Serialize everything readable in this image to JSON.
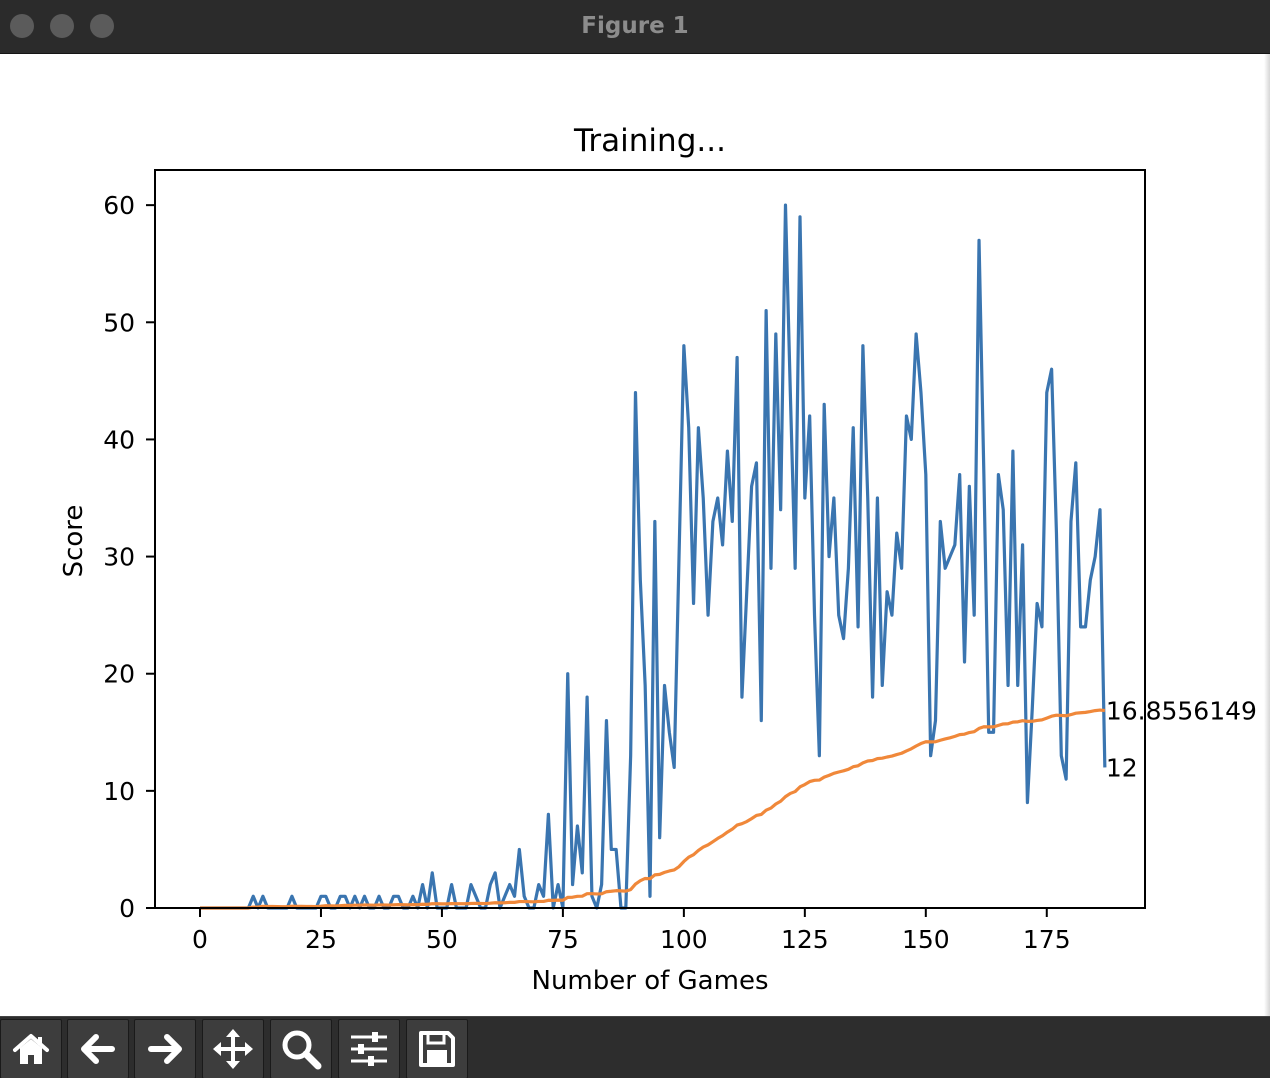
{
  "window": {
    "title": "Figure 1"
  },
  "toolbar": {
    "buttons": [
      {
        "name": "home-button",
        "icon": "home-icon"
      },
      {
        "name": "back-button",
        "icon": "arrow-left-icon"
      },
      {
        "name": "forward-button",
        "icon": "arrow-right-icon"
      },
      {
        "name": "pan-button",
        "icon": "move-icon"
      },
      {
        "name": "zoom-button",
        "icon": "magnifier-icon"
      },
      {
        "name": "configure-subplots-button",
        "icon": "sliders-icon"
      },
      {
        "name": "save-button",
        "icon": "floppy-disk-icon"
      }
    ]
  },
  "chart_data": {
    "type": "line",
    "title": "Training...",
    "xlabel": "Number of Games",
    "ylabel": "Score",
    "xlim": [
      -9.3,
      195.3
    ],
    "ylim": [
      0,
      63
    ],
    "xticks": [
      0,
      25,
      50,
      75,
      100,
      125,
      150,
      175
    ],
    "yticks": [
      0,
      10,
      20,
      30,
      40,
      50,
      60
    ],
    "grid": false,
    "legend": "none",
    "colors": {
      "scores": "#3a75b0",
      "mean_scores": "#f0883a"
    },
    "series": [
      {
        "key": "scores",
        "values": [
          0,
          0,
          0,
          0,
          0,
          0,
          0,
          0,
          0,
          0,
          0,
          1,
          0,
          1,
          0,
          0,
          0,
          0,
          0,
          1,
          0,
          0,
          0,
          0,
          0,
          1,
          1,
          0,
          0,
          1,
          1,
          0,
          1,
          0,
          1,
          0,
          0,
          1,
          0,
          0,
          1,
          1,
          0,
          0,
          1,
          0,
          2,
          0,
          3,
          0,
          0,
          0,
          2,
          0,
          0,
          0,
          2,
          1,
          0,
          0,
          2,
          3,
          0,
          1,
          2,
          1,
          5,
          1,
          0,
          0,
          2,
          1,
          8,
          0,
          2,
          0,
          20,
          2,
          7,
          3,
          18,
          1,
          0,
          2,
          16,
          5,
          5,
          0,
          0,
          13,
          44,
          28,
          19,
          1,
          33,
          6,
          19,
          15,
          12,
          30,
          48,
          41,
          26,
          41,
          35,
          25,
          33,
          35,
          31,
          39,
          33,
          47,
          18,
          27,
          36,
          38,
          16,
          51,
          29,
          49,
          34,
          60,
          44,
          29,
          59,
          35,
          42,
          25,
          13,
          43,
          30,
          35,
          25,
          23,
          29,
          41,
          24,
          48,
          35,
          18,
          35,
          19,
          27,
          25,
          32,
          29,
          42,
          40,
          49,
          44,
          37,
          13,
          16,
          33,
          29,
          30,
          31,
          37,
          21,
          36,
          25,
          57,
          37,
          15,
          15,
          37,
          34,
          19,
          39,
          19,
          31,
          9,
          17,
          26,
          24,
          44,
          46,
          32,
          13,
          11,
          33,
          38,
          24,
          24,
          28,
          30,
          34,
          12
        ],
        "end_label": "12"
      },
      {
        "key": "mean_scores",
        "values": [
          0,
          0,
          0,
          0,
          0,
          0,
          0,
          0,
          0,
          0,
          0,
          0.08,
          0.08,
          0.14,
          0.13,
          0.13,
          0.12,
          0.11,
          0.11,
          0.15,
          0.14,
          0.14,
          0.13,
          0.13,
          0.12,
          0.15,
          0.19,
          0.18,
          0.17,
          0.2,
          0.23,
          0.22,
          0.24,
          0.24,
          0.26,
          0.25,
          0.24,
          0.26,
          0.26,
          0.25,
          0.27,
          0.29,
          0.28,
          0.27,
          0.29,
          0.28,
          0.32,
          0.31,
          0.37,
          0.36,
          0.35,
          0.35,
          0.38,
          0.37,
          0.37,
          0.36,
          0.39,
          0.4,
          0.39,
          0.38,
          0.41,
          0.45,
          0.44,
          0.45,
          0.48,
          0.48,
          0.55,
          0.55,
          0.54,
          0.53,
          0.56,
          0.56,
          0.66,
          0.65,
          0.67,
          0.66,
          0.91,
          0.92,
          1,
          1.01,
          1.22,
          1.22,
          1.2,
          1.21,
          1.39,
          1.43,
          1.48,
          1.46,
          1.44,
          1.57,
          2.04,
          2.33,
          2.52,
          2.5,
          2.83,
          2.87,
          3.04,
          3.16,
          3.25,
          3.53,
          3.97,
          4.34,
          4.55,
          4.91,
          5.2,
          5.39,
          5.66,
          5.94,
          6.18,
          6.48,
          6.73,
          7.08,
          7.2,
          7.38,
          7.63,
          7.9,
          7.99,
          8.35,
          8.53,
          8.88,
          9.11,
          9.51,
          9.78,
          9.94,
          10.34,
          10.54,
          10.79,
          10.9,
          10.92,
          11.17,
          11.32,
          11.5,
          11.61,
          11.71,
          11.84,
          12.06,
          12.14,
          12.39,
          12.55,
          12.59,
          12.75,
          12.79,
          12.89,
          12.97,
          13.1,
          13.21,
          13.41,
          13.59,
          13.83,
          14.04,
          14.19,
          14.18,
          14.19,
          14.32,
          14.43,
          14.53,
          14.65,
          14.8,
          14.84,
          14.98,
          15.05,
          15.33,
          15.47,
          15.46,
          15.46,
          15.59,
          15.71,
          15.73,
          15.87,
          15.89,
          15.99,
          15.93,
          15.94,
          16.01,
          16.06,
          16.21,
          16.37,
          16.46,
          16.44,
          16.41,
          16.51,
          16.63,
          16.67,
          16.7,
          16.77,
          16.85,
          16.9,
          16.86
        ],
        "end_label": "16.8556149"
      }
    ]
  }
}
